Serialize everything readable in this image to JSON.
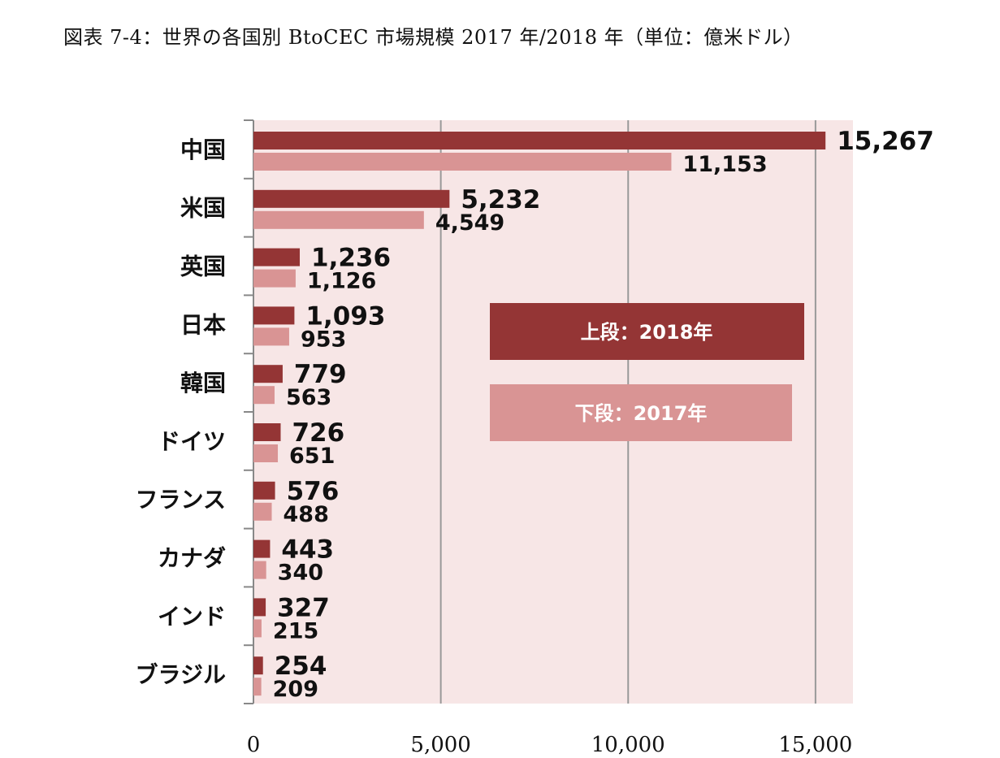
{
  "title": "図表 7-4：世界の各国別 BtoCEC 市場規模 2017 年/2018 年（単位：億米ドル）",
  "colors": {
    "s2018": "#943535",
    "s2017": "#d99494",
    "plot_bg": "#f7e6e6",
    "grid": "#999999"
  },
  "chart_data": {
    "type": "bar",
    "orientation": "horizontal",
    "categories": [
      "中国",
      "米国",
      "英国",
      "日本",
      "韓国",
      "ドイツ",
      "フランス",
      "カナダ",
      "インド",
      "ブラジル"
    ],
    "series": [
      {
        "name": "上段：2018年",
        "values": [
          15267,
          5232,
          1236,
          1093,
          779,
          726,
          576,
          443,
          327,
          254
        ],
        "labels": [
          "15,267",
          "5,232",
          "1,236",
          "1,093",
          "779",
          "726",
          "576",
          "443",
          "327",
          "254"
        ]
      },
      {
        "name": "下段：2017年",
        "values": [
          11153,
          4549,
          1126,
          953,
          563,
          651,
          488,
          340,
          215,
          209
        ],
        "labels": [
          "11,153",
          "4,549",
          "1,126",
          "953",
          "563",
          "651",
          "488",
          "340",
          "215",
          "209"
        ]
      }
    ],
    "xlim": [
      0,
      16000
    ],
    "xticks": [
      0,
      5000,
      10000,
      15000
    ],
    "xtick_labels": [
      "0",
      "5,000",
      "10,000",
      "15,000"
    ],
    "grid": true,
    "legend": "inside-right"
  }
}
